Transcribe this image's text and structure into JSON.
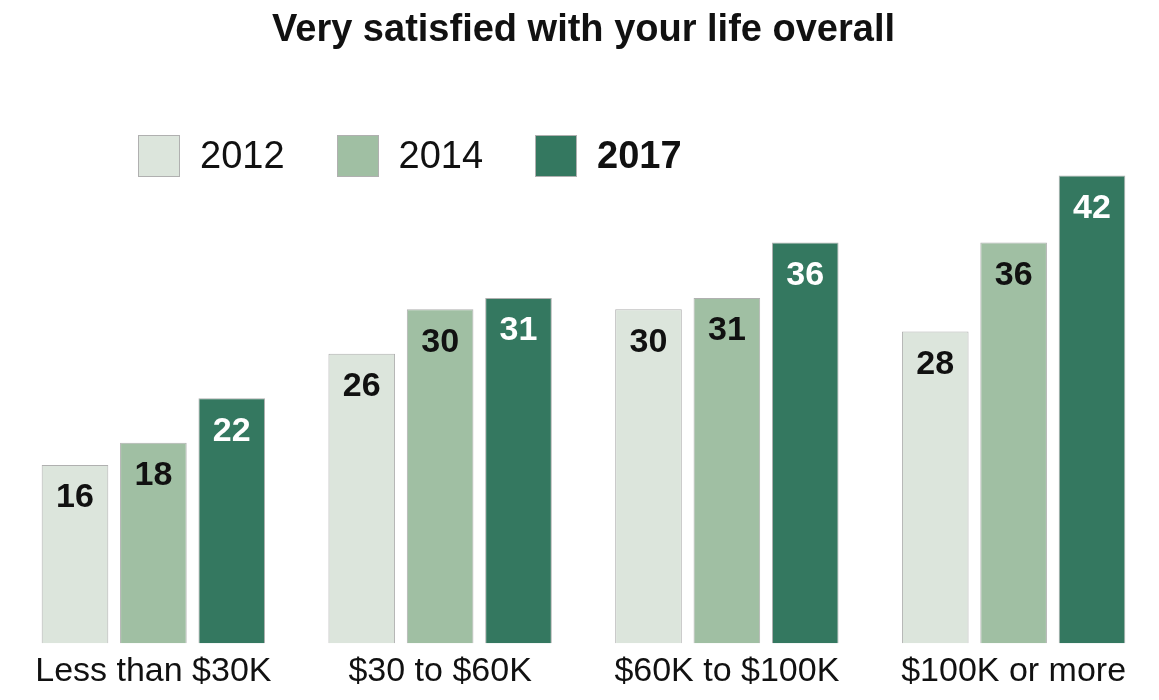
{
  "chart_data": {
    "type": "bar",
    "title": "Very satisfied with your life overall",
    "categories": [
      "Less than $30K",
      "$30 to $60K",
      "$60K to $100K",
      "$100K or more"
    ],
    "series": [
      {
        "name": "2012",
        "color": "#dce5dc",
        "values": [
          16,
          26,
          30,
          28
        ]
      },
      {
        "name": "2014",
        "color": "#a0bfa3",
        "values": [
          18,
          30,
          31,
          36
        ]
      },
      {
        "name": "2017",
        "color": "#347860",
        "values": [
          22,
          31,
          36,
          42
        ]
      }
    ],
    "ylim": [
      0,
      42
    ],
    "tick_labels": "x",
    "grid": false,
    "legend": "top left",
    "data_labels": true
  }
}
